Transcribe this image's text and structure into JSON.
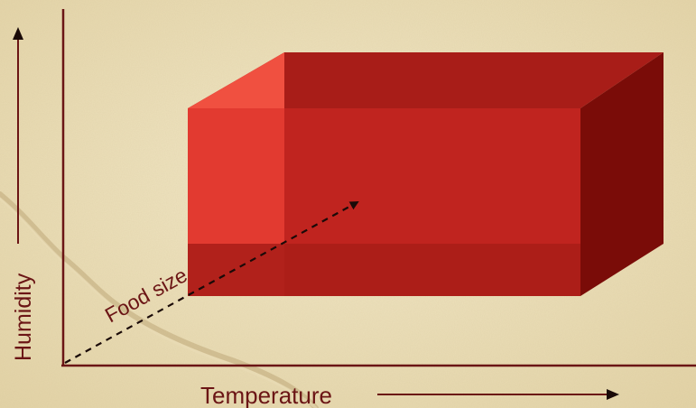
{
  "labels": {
    "x_axis": "Temperature",
    "y_axis": "Humidity",
    "z_axis": "Food size"
  },
  "colors": {
    "background": "#eee3c0",
    "axis": "#6b1515",
    "label": "#6b1515",
    "box_front": "#c0241f",
    "box_left_face": "#e23a30",
    "box_top": "#a81d18",
    "box_top_lit": "#f05040",
    "box_right": "#7a0c08",
    "box_bottom_band": "#a81d18",
    "arrow_dashed": "#1a0a08"
  }
}
